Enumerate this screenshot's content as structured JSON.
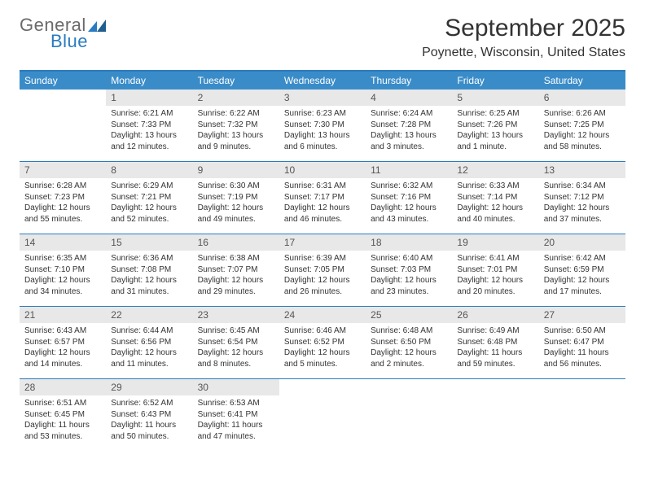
{
  "colors": {
    "accent": "#2a7bbf",
    "header_bg": "#3a8cc9",
    "daynum_bg": "#e8e8e8",
    "text": "#333333",
    "logo_gray": "#6a6a6a",
    "logo_blue": "#2a7bbf",
    "white": "#ffffff"
  },
  "logo": {
    "word1": "General",
    "word2": "Blue"
  },
  "title": "September 2025",
  "subtitle": "Poynette, Wisconsin, United States",
  "days_of_week": [
    "Sunday",
    "Monday",
    "Tuesday",
    "Wednesday",
    "Thursday",
    "Friday",
    "Saturday"
  ],
  "weeks": [
    [
      {
        "n": "",
        "lines": [
          "",
          "",
          "",
          ""
        ]
      },
      {
        "n": "1",
        "lines": [
          "Sunrise: 6:21 AM",
          "Sunset: 7:33 PM",
          "Daylight: 13 hours",
          "and 12 minutes."
        ]
      },
      {
        "n": "2",
        "lines": [
          "Sunrise: 6:22 AM",
          "Sunset: 7:32 PM",
          "Daylight: 13 hours",
          "and 9 minutes."
        ]
      },
      {
        "n": "3",
        "lines": [
          "Sunrise: 6:23 AM",
          "Sunset: 7:30 PM",
          "Daylight: 13 hours",
          "and 6 minutes."
        ]
      },
      {
        "n": "4",
        "lines": [
          "Sunrise: 6:24 AM",
          "Sunset: 7:28 PM",
          "Daylight: 13 hours",
          "and 3 minutes."
        ]
      },
      {
        "n": "5",
        "lines": [
          "Sunrise: 6:25 AM",
          "Sunset: 7:26 PM",
          "Daylight: 13 hours",
          "and 1 minute."
        ]
      },
      {
        "n": "6",
        "lines": [
          "Sunrise: 6:26 AM",
          "Sunset: 7:25 PM",
          "Daylight: 12 hours",
          "and 58 minutes."
        ]
      }
    ],
    [
      {
        "n": "7",
        "lines": [
          "Sunrise: 6:28 AM",
          "Sunset: 7:23 PM",
          "Daylight: 12 hours",
          "and 55 minutes."
        ]
      },
      {
        "n": "8",
        "lines": [
          "Sunrise: 6:29 AM",
          "Sunset: 7:21 PM",
          "Daylight: 12 hours",
          "and 52 minutes."
        ]
      },
      {
        "n": "9",
        "lines": [
          "Sunrise: 6:30 AM",
          "Sunset: 7:19 PM",
          "Daylight: 12 hours",
          "and 49 minutes."
        ]
      },
      {
        "n": "10",
        "lines": [
          "Sunrise: 6:31 AM",
          "Sunset: 7:17 PM",
          "Daylight: 12 hours",
          "and 46 minutes."
        ]
      },
      {
        "n": "11",
        "lines": [
          "Sunrise: 6:32 AM",
          "Sunset: 7:16 PM",
          "Daylight: 12 hours",
          "and 43 minutes."
        ]
      },
      {
        "n": "12",
        "lines": [
          "Sunrise: 6:33 AM",
          "Sunset: 7:14 PM",
          "Daylight: 12 hours",
          "and 40 minutes."
        ]
      },
      {
        "n": "13",
        "lines": [
          "Sunrise: 6:34 AM",
          "Sunset: 7:12 PM",
          "Daylight: 12 hours",
          "and 37 minutes."
        ]
      }
    ],
    [
      {
        "n": "14",
        "lines": [
          "Sunrise: 6:35 AM",
          "Sunset: 7:10 PM",
          "Daylight: 12 hours",
          "and 34 minutes."
        ]
      },
      {
        "n": "15",
        "lines": [
          "Sunrise: 6:36 AM",
          "Sunset: 7:08 PM",
          "Daylight: 12 hours",
          "and 31 minutes."
        ]
      },
      {
        "n": "16",
        "lines": [
          "Sunrise: 6:38 AM",
          "Sunset: 7:07 PM",
          "Daylight: 12 hours",
          "and 29 minutes."
        ]
      },
      {
        "n": "17",
        "lines": [
          "Sunrise: 6:39 AM",
          "Sunset: 7:05 PM",
          "Daylight: 12 hours",
          "and 26 minutes."
        ]
      },
      {
        "n": "18",
        "lines": [
          "Sunrise: 6:40 AM",
          "Sunset: 7:03 PM",
          "Daylight: 12 hours",
          "and 23 minutes."
        ]
      },
      {
        "n": "19",
        "lines": [
          "Sunrise: 6:41 AM",
          "Sunset: 7:01 PM",
          "Daylight: 12 hours",
          "and 20 minutes."
        ]
      },
      {
        "n": "20",
        "lines": [
          "Sunrise: 6:42 AM",
          "Sunset: 6:59 PM",
          "Daylight: 12 hours",
          "and 17 minutes."
        ]
      }
    ],
    [
      {
        "n": "21",
        "lines": [
          "Sunrise: 6:43 AM",
          "Sunset: 6:57 PM",
          "Daylight: 12 hours",
          "and 14 minutes."
        ]
      },
      {
        "n": "22",
        "lines": [
          "Sunrise: 6:44 AM",
          "Sunset: 6:56 PM",
          "Daylight: 12 hours",
          "and 11 minutes."
        ]
      },
      {
        "n": "23",
        "lines": [
          "Sunrise: 6:45 AM",
          "Sunset: 6:54 PM",
          "Daylight: 12 hours",
          "and 8 minutes."
        ]
      },
      {
        "n": "24",
        "lines": [
          "Sunrise: 6:46 AM",
          "Sunset: 6:52 PM",
          "Daylight: 12 hours",
          "and 5 minutes."
        ]
      },
      {
        "n": "25",
        "lines": [
          "Sunrise: 6:48 AM",
          "Sunset: 6:50 PM",
          "Daylight: 12 hours",
          "and 2 minutes."
        ]
      },
      {
        "n": "26",
        "lines": [
          "Sunrise: 6:49 AM",
          "Sunset: 6:48 PM",
          "Daylight: 11 hours",
          "and 59 minutes."
        ]
      },
      {
        "n": "27",
        "lines": [
          "Sunrise: 6:50 AM",
          "Sunset: 6:47 PM",
          "Daylight: 11 hours",
          "and 56 minutes."
        ]
      }
    ],
    [
      {
        "n": "28",
        "lines": [
          "Sunrise: 6:51 AM",
          "Sunset: 6:45 PM",
          "Daylight: 11 hours",
          "and 53 minutes."
        ]
      },
      {
        "n": "29",
        "lines": [
          "Sunrise: 6:52 AM",
          "Sunset: 6:43 PM",
          "Daylight: 11 hours",
          "and 50 minutes."
        ]
      },
      {
        "n": "30",
        "lines": [
          "Sunrise: 6:53 AM",
          "Sunset: 6:41 PM",
          "Daylight: 11 hours",
          "and 47 minutes."
        ]
      },
      {
        "n": "",
        "lines": [
          "",
          "",
          "",
          ""
        ]
      },
      {
        "n": "",
        "lines": [
          "",
          "",
          "",
          ""
        ]
      },
      {
        "n": "",
        "lines": [
          "",
          "",
          "",
          ""
        ]
      },
      {
        "n": "",
        "lines": [
          "",
          "",
          "",
          ""
        ]
      }
    ]
  ]
}
